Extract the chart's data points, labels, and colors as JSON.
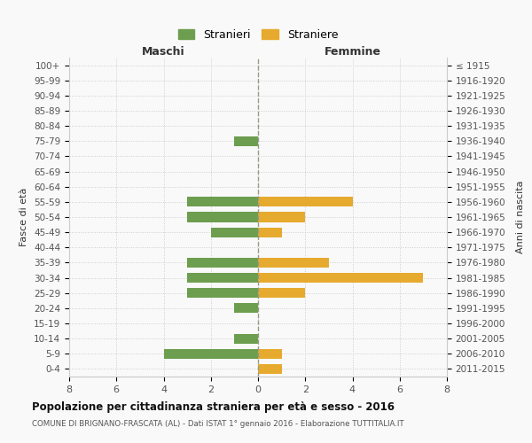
{
  "age_groups": [
    "100+",
    "95-99",
    "90-94",
    "85-89",
    "80-84",
    "75-79",
    "70-74",
    "65-69",
    "60-64",
    "55-59",
    "50-54",
    "45-49",
    "40-44",
    "35-39",
    "30-34",
    "25-29",
    "20-24",
    "15-19",
    "10-14",
    "5-9",
    "0-4"
  ],
  "birth_years": [
    "≤ 1915",
    "1916-1920",
    "1921-1925",
    "1926-1930",
    "1931-1935",
    "1936-1940",
    "1941-1945",
    "1946-1950",
    "1951-1955",
    "1956-1960",
    "1961-1965",
    "1966-1970",
    "1971-1975",
    "1976-1980",
    "1981-1985",
    "1986-1990",
    "1991-1995",
    "1996-2000",
    "2001-2005",
    "2006-2010",
    "2011-2015"
  ],
  "maschi": [
    0,
    0,
    0,
    0,
    0,
    1,
    0,
    0,
    0,
    3,
    3,
    2,
    0,
    3,
    3,
    3,
    1,
    0,
    1,
    4,
    0
  ],
  "femmine": [
    0,
    0,
    0,
    0,
    0,
    0,
    0,
    0,
    0,
    4,
    2,
    1,
    0,
    3,
    7,
    2,
    0,
    0,
    0,
    1,
    1
  ],
  "color_maschi": "#6d9e4f",
  "color_femmine": "#e6aa2f",
  "title_main": "Popolazione per cittadinanza straniera per età e sesso - 2016",
  "title_sub": "COMUNE DI BRIGNANO-FRASCATA (AL) - Dati ISTAT 1° gennaio 2016 - Elaborazione TUTTITALIA.IT",
  "ylabel_left": "Fasce di età",
  "ylabel_right": "Anni di nascita",
  "xlabel_left": "Maschi",
  "xlabel_right": "Femmine",
  "legend_stranieri": "Stranieri",
  "legend_straniere": "Straniere",
  "xlim": 8,
  "background_color": "#f9f9f9",
  "grid_color": "#cccccc"
}
